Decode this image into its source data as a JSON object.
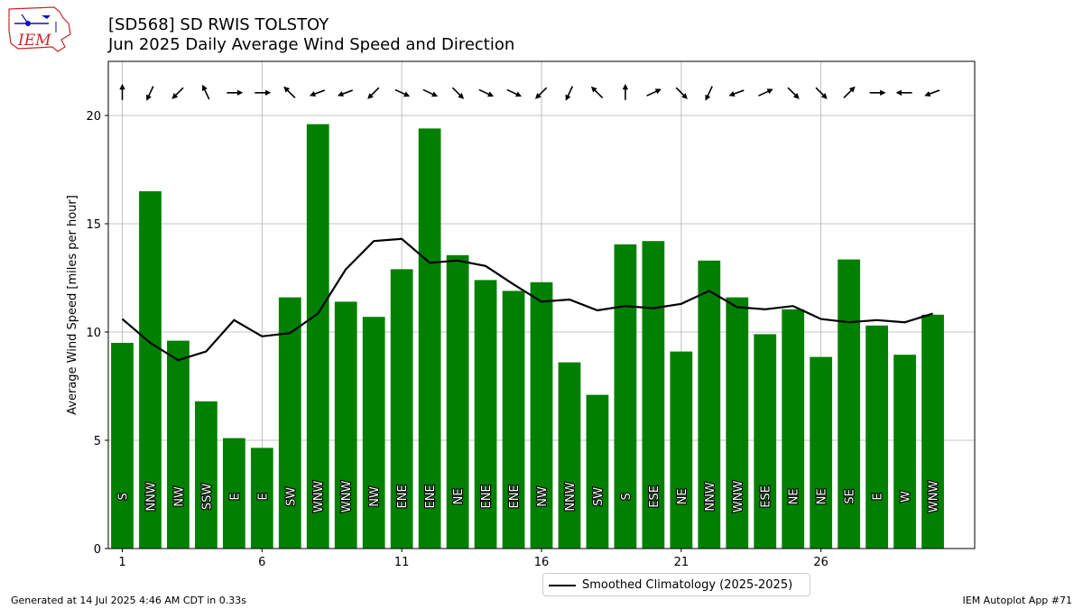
{
  "header": {
    "logo_text": "IEM",
    "title_line1": "[SD568] SD RWIS TOLSTOY",
    "title_line2": "Jun 2025 Daily Average Wind Speed and Direction"
  },
  "footer": {
    "generated": "Generated at 14 Jul 2025 4:46 AM CDT in 0.33s",
    "app": "IEM Autoplot App #71"
  },
  "colors": {
    "bar": "#008000",
    "line": "#000000",
    "grid": "#b0b0b0",
    "logo_red": "#c8282a",
    "logo_blue": "#1010c0"
  },
  "chart_data": {
    "type": "bar",
    "title": "[SD568] SD RWIS TOLSTOY",
    "subtitle": "Jun 2025 Daily Average Wind Speed and Direction",
    "xlabel": "",
    "ylabel": "Average Wind Speed [miles per hour]",
    "xlim": [
      0.5,
      31.5
    ],
    "ylim": [
      0,
      22.5
    ],
    "xticks": [
      1,
      6,
      11,
      16,
      21,
      26
    ],
    "yticks": [
      0,
      5,
      10,
      15,
      20
    ],
    "grid": true,
    "legend_position": "below center",
    "days": [
      1,
      2,
      3,
      4,
      5,
      6,
      7,
      8,
      9,
      10,
      11,
      12,
      13,
      14,
      15,
      16,
      17,
      18,
      19,
      20,
      21,
      22,
      23,
      24,
      25,
      26,
      27,
      28,
      29,
      30
    ],
    "series": [
      {
        "name": "",
        "type": "bar",
        "values": [
          9.5,
          16.5,
          9.6,
          6.8,
          5.1,
          4.65,
          11.6,
          19.6,
          11.4,
          10.7,
          12.9,
          19.4,
          13.55,
          12.4,
          11.9,
          12.3,
          8.6,
          7.1,
          14.05,
          14.2,
          9.1,
          13.3,
          11.6,
          9.9,
          11.05,
          8.85,
          13.35,
          10.3,
          8.95,
          10.8
        ],
        "directions": [
          "S",
          "NNW",
          "NW",
          "SSW",
          "E",
          "E",
          "SW",
          "WNW",
          "WNW",
          "NW",
          "ENE",
          "ENE",
          "NE",
          "ENE",
          "ENE",
          "NW",
          "NNW",
          "SW",
          "S",
          "ESE",
          "NE",
          "NNW",
          "WNW",
          "ESE",
          "NE",
          "NE",
          "SE",
          "E",
          "W",
          "WNW"
        ]
      },
      {
        "name": "Smoothed Climatology (2025-2025)",
        "type": "line",
        "values": [
          10.6,
          9.5,
          8.7,
          9.1,
          10.55,
          9.8,
          9.95,
          10.85,
          12.9,
          14.2,
          14.3,
          13.2,
          13.3,
          13.05,
          12.2,
          11.4,
          11.5,
          11.0,
          11.2,
          11.1,
          11.3,
          11.9,
          11.15,
          11.05,
          11.2,
          10.6,
          10.45,
          10.55,
          10.45,
          10.85
        ]
      }
    ],
    "arrow_directions_deg": [
      180,
      335,
      315,
      205,
      90,
      90,
      225,
      290,
      290,
      315,
      65,
      65,
      45,
      65,
      65,
      315,
      335,
      225,
      180,
      115,
      45,
      335,
      290,
      115,
      45,
      45,
      135,
      90,
      270,
      290
    ]
  }
}
